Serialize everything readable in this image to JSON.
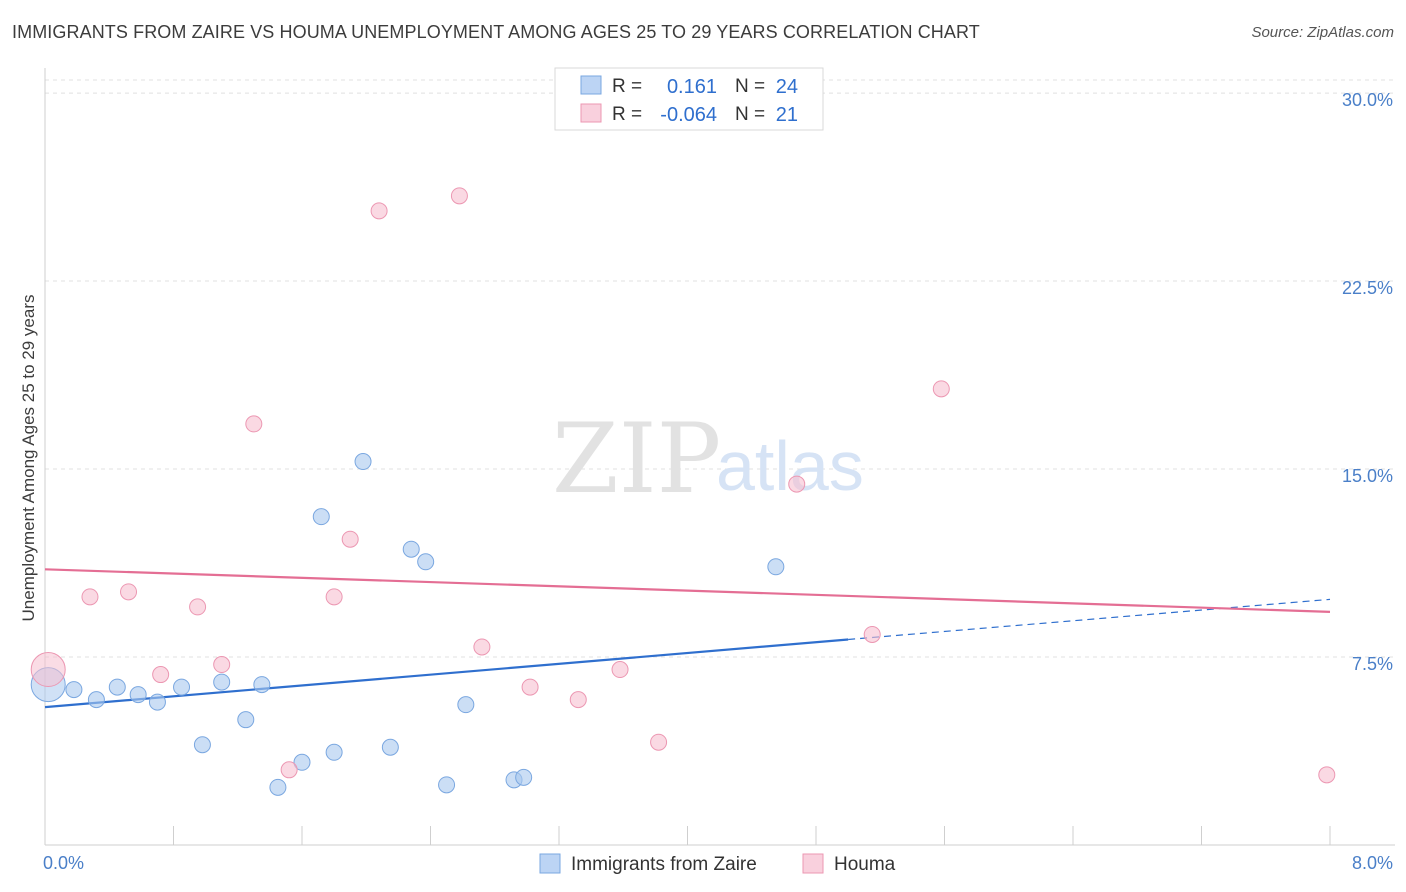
{
  "chart_data": {
    "type": "scatter",
    "title": "IMMIGRANTS FROM ZAIRE VS HOUMA UNEMPLOYMENT AMONG AGES 25 TO 29 YEARS CORRELATION CHART",
    "source": "Source: ZipAtlas.com",
    "xlabel": "",
    "ylabel": "Unemployment Among Ages 25 to 29 years",
    "xlim": [
      0,
      8
    ],
    "ylim": [
      0,
      31
    ],
    "x_tick_labels": [
      "0.0%",
      "8.0%"
    ],
    "y_ticks": [
      7.5,
      15.0,
      22.5,
      30.0
    ],
    "y_tick_labels": [
      "7.5%",
      "15.0%",
      "22.5%",
      "30.0%"
    ],
    "grid": true,
    "watermark": {
      "zip": "ZIP",
      "atlas": "atlas"
    },
    "legend": {
      "location": "top-center",
      "entries": [
        {
          "label_r": "R =",
          "r": "0.161",
          "label_n": "N =",
          "n": "24"
        },
        {
          "label_r": "R =",
          "r": "-0.064",
          "label_n": "N =",
          "n": "21"
        }
      ]
    },
    "series": [
      {
        "name": "Immigrants from Zaire",
        "color": "#a9c8ef",
        "stroke": "#7aa7e0",
        "line_color": "#2f6fce",
        "trend": {
          "x0": 0.0,
          "y0": 5.5,
          "x1": 5.0,
          "y1": 8.2,
          "dash_x1": 8.0,
          "dash_y1": 9.8
        },
        "points": [
          [
            0.02,
            6.4,
            "large"
          ],
          [
            0.18,
            6.2
          ],
          [
            0.32,
            5.8
          ],
          [
            0.45,
            6.3
          ],
          [
            0.58,
            6.0
          ],
          [
            0.7,
            5.7
          ],
          [
            0.85,
            6.3
          ],
          [
            0.98,
            4.0
          ],
          [
            1.1,
            6.5
          ],
          [
            1.25,
            5.0
          ],
          [
            1.35,
            6.4
          ],
          [
            1.45,
            2.3
          ],
          [
            1.6,
            3.3
          ],
          [
            1.72,
            13.1
          ],
          [
            1.8,
            3.7
          ],
          [
            1.98,
            15.3
          ],
          [
            2.15,
            3.9
          ],
          [
            2.28,
            11.8
          ],
          [
            2.37,
            11.3
          ],
          [
            2.5,
            2.4
          ],
          [
            2.62,
            5.6
          ],
          [
            2.92,
            2.6
          ],
          [
            2.98,
            2.7
          ],
          [
            4.55,
            11.1
          ]
        ]
      },
      {
        "name": "Houma",
        "color": "#f6bfd0",
        "stroke": "#ec97b2",
        "line_color": "#e46e94",
        "trend": {
          "x0": 0.0,
          "y0": 11.0,
          "x1": 8.0,
          "y1": 9.3
        },
        "points": [
          [
            0.02,
            7.0,
            "large"
          ],
          [
            0.28,
            9.9
          ],
          [
            0.52,
            10.1
          ],
          [
            0.72,
            6.8
          ],
          [
            0.95,
            9.5
          ],
          [
            1.1,
            7.2
          ],
          [
            1.3,
            16.8
          ],
          [
            1.52,
            3.0
          ],
          [
            1.8,
            9.9
          ],
          [
            1.9,
            12.2
          ],
          [
            2.08,
            25.3
          ],
          [
            2.58,
            25.9
          ],
          [
            2.72,
            7.9
          ],
          [
            3.02,
            6.3
          ],
          [
            3.32,
            5.8
          ],
          [
            3.58,
            7.0
          ],
          [
            3.82,
            4.1
          ],
          [
            4.68,
            14.4
          ],
          [
            5.15,
            8.4
          ],
          [
            5.58,
            18.2
          ],
          [
            7.98,
            2.8
          ]
        ]
      }
    ]
  }
}
